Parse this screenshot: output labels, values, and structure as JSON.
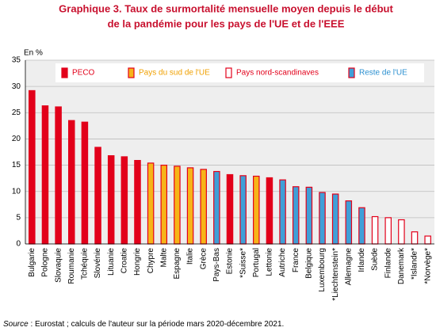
{
  "chart_data": {
    "type": "bar",
    "title": [
      "Graphique 3. Taux de surmortalité mensuelle moyen depuis le début",
      "de la pandémie pour les pays de l'UE et de l'EEE"
    ],
    "y_label": "En %",
    "categories": [
      "Bulgarie",
      "Pologne",
      "Slovaquie",
      "Roumanie",
      "Tchéquie",
      "Slovénie",
      "Lituanie",
      "Croatie",
      "Hongrie",
      "Chypre",
      "Malte",
      "Espagne",
      "Italie",
      "Grèce",
      "Pays-Bas",
      "Estonie",
      "*Suisse*",
      "Portugal",
      "Lettonie",
      "Autriche",
      "France",
      "Belgique",
      "Luxembourg",
      "*Liechtenstein*",
      "Allemagne",
      "Irlande",
      "Suède",
      "Finlande",
      "Danemark",
      "*Islande*",
      "*Norvège*"
    ],
    "edge_color": "#e2001a",
    "series": [
      {
        "name": "PECO",
        "color": "#e2001a",
        "label_color": "#e2001a",
        "values": [
          29.2,
          26.3,
          26.1,
          23.5,
          23.2,
          18.4,
          16.8,
          16.6,
          15.9,
          null,
          null,
          null,
          null,
          null,
          null,
          13.2,
          null,
          null,
          12.6,
          null,
          null,
          null,
          null,
          null,
          null,
          null,
          null,
          null,
          null,
          null,
          null
        ]
      },
      {
        "name": "Pays du sud de l'UE",
        "color": "#f7b418",
        "label_color": "#f0a000",
        "values": [
          null,
          null,
          null,
          null,
          null,
          null,
          null,
          null,
          null,
          15.4,
          15.0,
          14.8,
          14.5,
          14.2,
          null,
          null,
          null,
          12.9,
          null,
          null,
          null,
          null,
          null,
          null,
          null,
          null,
          null,
          null,
          null,
          null,
          null
        ]
      },
      {
        "name": "Pays nord-scandinaves",
        "color": "#ffffff",
        "label_color": "#e2001a",
        "values": [
          null,
          null,
          null,
          null,
          null,
          null,
          null,
          null,
          null,
          null,
          null,
          null,
          null,
          null,
          null,
          null,
          null,
          null,
          null,
          null,
          null,
          null,
          null,
          null,
          null,
          null,
          5.2,
          5.0,
          4.6,
          2.3,
          1.5
        ]
      },
      {
        "name": "Reste de l'UE",
        "color": "#3f9fd8",
        "label_color": "#2a8fd0",
        "values": [
          null,
          null,
          null,
          null,
          null,
          null,
          null,
          null,
          null,
          null,
          null,
          null,
          null,
          null,
          13.8,
          null,
          13.0,
          null,
          null,
          12.2,
          10.9,
          10.8,
          9.8,
          9.5,
          8.2,
          6.9,
          null,
          null,
          null,
          null,
          null
        ]
      }
    ],
    "ylim": [
      0,
      35
    ],
    "yticks": [
      0,
      5,
      10,
      15,
      20,
      25,
      30,
      35
    ],
    "grid": true,
    "source_label": "Source",
    "source_text": " : Eurostat ; calculs de l'auteur sur la période mars 2020-décembre 2021."
  }
}
